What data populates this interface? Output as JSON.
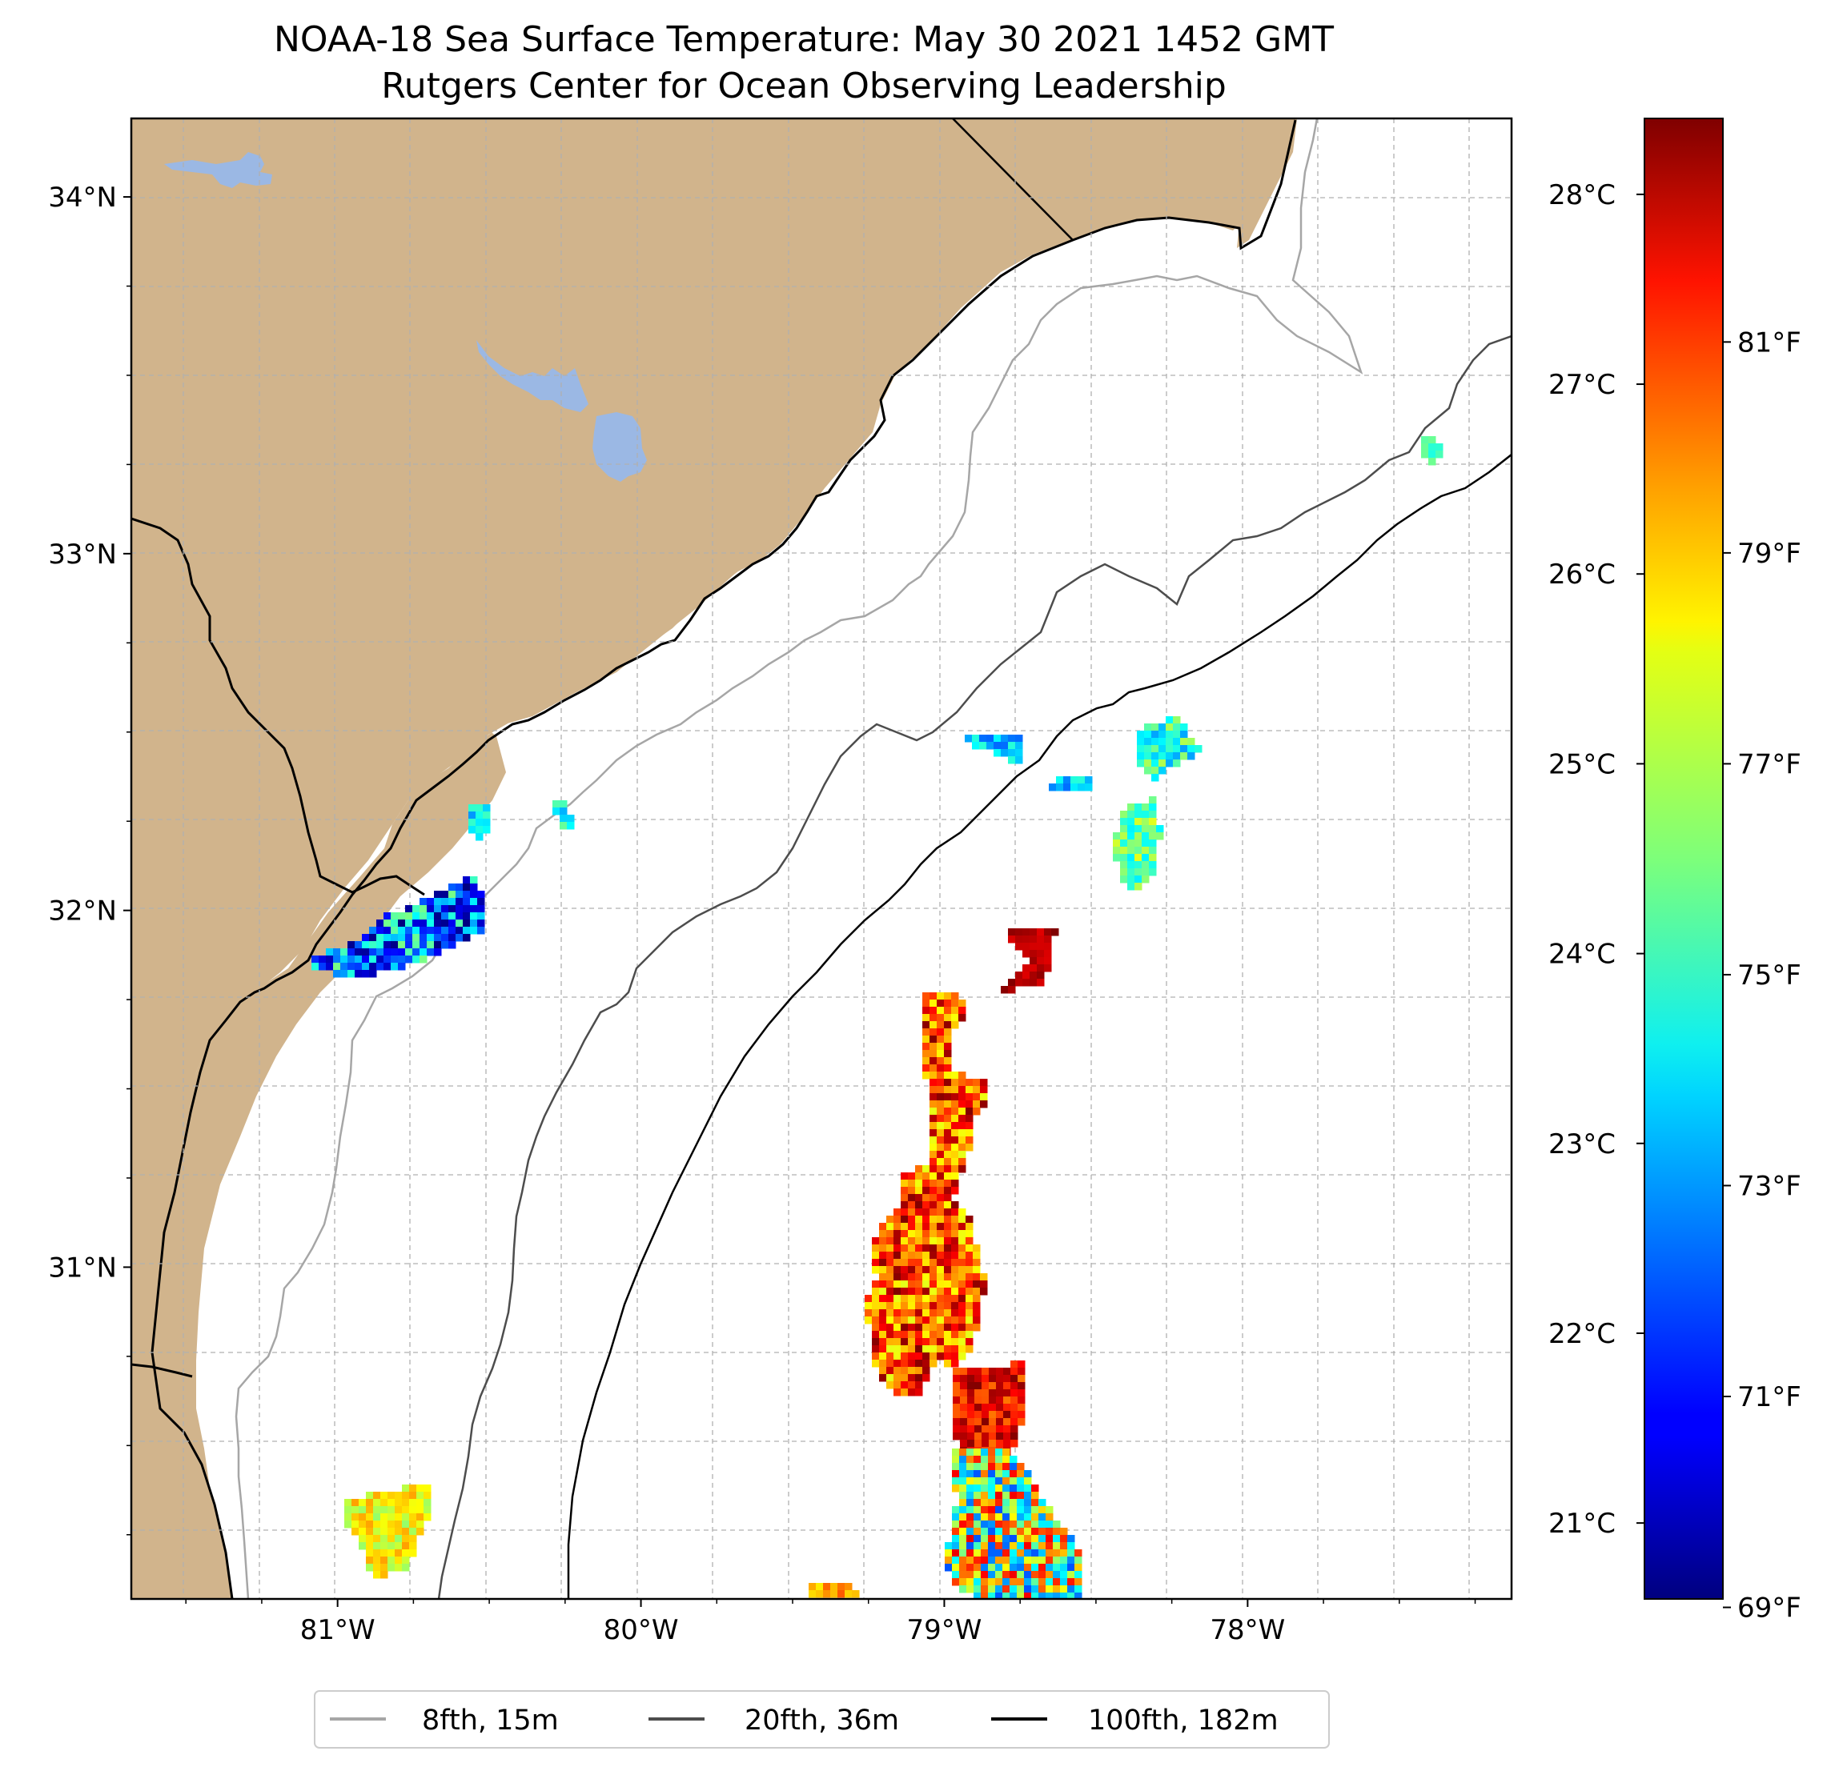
{
  "title": {
    "line1": "NOAA-18 Sea Surface Temperature: May 30 2021 1452 GMT",
    "line2": "Rutgers Center for Ocean Observing Leadership"
  },
  "map": {
    "lon_range": [
      -81.68,
      -77.13
    ],
    "lat_range": [
      30.07,
      34.22
    ],
    "lat_ticks": [
      {
        "value": 34,
        "label": "34°N"
      },
      {
        "value": 33,
        "label": "33°N"
      },
      {
        "value": 32,
        "label": "32°N"
      },
      {
        "value": 31,
        "label": "31°N"
      }
    ],
    "lon_ticks": [
      {
        "value": -81,
        "label": "81°W"
      },
      {
        "value": -80,
        "label": "80°W"
      },
      {
        "value": -79,
        "label": "79°W"
      },
      {
        "value": -78,
        "label": "78°W"
      }
    ],
    "colors": {
      "land": "#d1b48c",
      "water_body": "#9bb8e4",
      "coastline": "#000000",
      "grid": "#b0b0b0",
      "isobath_8fth": "#a6a6a6",
      "isobath_20fth": "#4d4d4d",
      "isobath_100fth": "#000000"
    }
  },
  "colorbar": {
    "colormap": "jet",
    "celsius_range": [
      20.6,
      28.4
    ],
    "celsius_ticks": [
      "28°C",
      "27°C",
      "26°C",
      "25°C",
      "24°C",
      "23°C",
      "22°C",
      "21°C"
    ],
    "fahrenheit_ticks": [
      "81°F",
      "79°F",
      "77°F",
      "75°F",
      "73°F",
      "71°F",
      "69°F"
    ]
  },
  "legend": {
    "placement": "bottom-center",
    "items": [
      {
        "label": "8fth, 15m",
        "color": "#a6a6a6"
      },
      {
        "label": "20fth, 36m",
        "color": "#4d4d4d"
      },
      {
        "label": "100fth, 182m",
        "color": "#000000"
      }
    ]
  }
}
